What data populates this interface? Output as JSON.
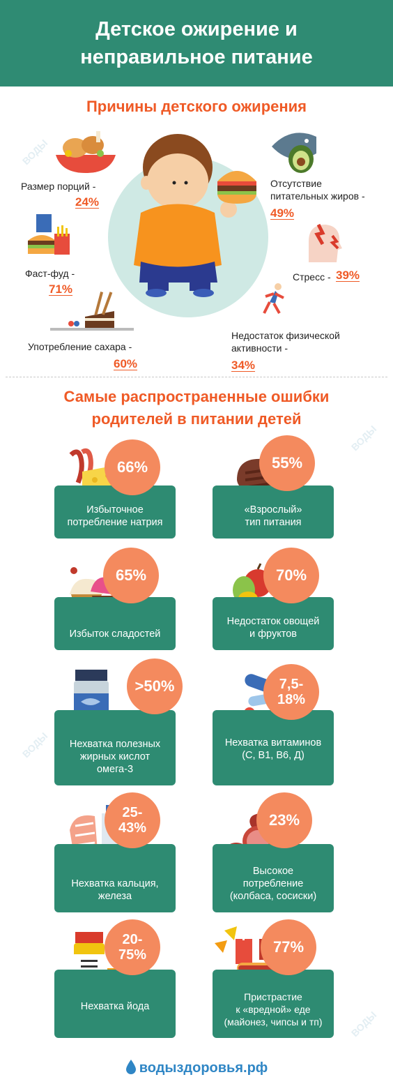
{
  "header": {
    "title_line1": "Детское ожирение и",
    "title_line2": "неправильное питание"
  },
  "causes": {
    "title": "Причины детского ожирения",
    "items": [
      {
        "label": "Размер порций -",
        "value": "24%"
      },
      {
        "label": "Фаст-фуд -",
        "value": "71%"
      },
      {
        "label": "Употребление сахара -",
        "value": "60%"
      },
      {
        "label_line1": "Отсутствие",
        "label_line2": "питательных жиров -",
        "value": "49%"
      },
      {
        "label": "Стресс -",
        "value": "39%"
      },
      {
        "label_line1": "Недостаток физической",
        "label_line2": "активности -",
        "value": "34%"
      }
    ]
  },
  "mistakes": {
    "title_line1": "Самые распространенные ошибки",
    "title_line2": "родителей в питании детей",
    "cards": [
      {
        "value": "66%",
        "lines": [
          "Избыточное",
          "потребление натрия"
        ]
      },
      {
        "value": "55%",
        "lines": [
          "«Взрослый»",
          "тип питания"
        ]
      },
      {
        "value": "65%",
        "lines": [
          "Избыток сладостей"
        ]
      },
      {
        "value": "70%",
        "lines": [
          "Недостаток овощей",
          "и фруктов"
        ]
      },
      {
        "value": ">50%",
        "lines": [
          "Нехватка полезных",
          "жирных кислот",
          "омега-3"
        ]
      },
      {
        "value_line1": "7,5-",
        "value_line2": "18%",
        "lines": [
          "Нехватка витаминов",
          "(С, В1, В6, Д)"
        ]
      },
      {
        "value_line1": "25-",
        "value_line2": "43%",
        "lines": [
          "Нехватка кальция,",
          "железа"
        ]
      },
      {
        "value": "23%",
        "lines": [
          "Высокое",
          "потребление",
          "(колбаса, сосиски)"
        ]
      },
      {
        "value_line1": "20-",
        "value_line2": "75%",
        "lines": [
          "Нехватка йода"
        ]
      },
      {
        "value": "77%",
        "lines": [
          "Пристрастие",
          "к «вредной» еде",
          "(майонез, чипсы и тп)"
        ]
      }
    ]
  },
  "watermark": "ВОДЫ",
  "footer": {
    "site": "водыздоровья.рф"
  },
  "colors": {
    "header": "#2f8b73",
    "accent": "#ef5a26",
    "card": "#2e8b72",
    "circle": "#f48a5e",
    "boy_bg": "#cfe9e4"
  },
  "icons": [
    "chicken-plate-icon",
    "fast-food-icon",
    "cake-icon",
    "fish-avocado-icon",
    "stress-head-icon",
    "runner-icon",
    "boy-burger-illustration",
    "bacon-cheese-icon",
    "steak-icon",
    "cupcakes-icon",
    "vegetables-icon",
    "omega-jar-icon",
    "pills-icon",
    "salmon-milk-icon",
    "sausage-icon",
    "iodine-jar-icon",
    "junk-food-icon",
    "water-drop-logo-icon"
  ]
}
